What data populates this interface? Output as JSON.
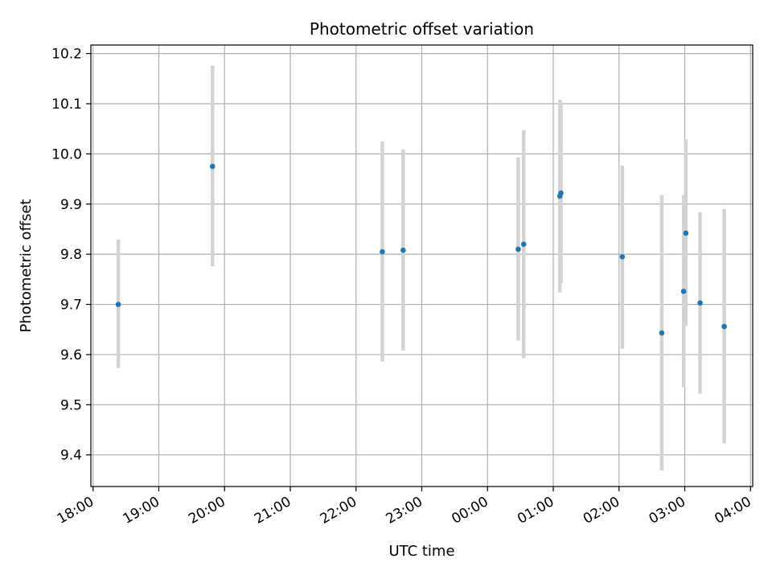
{
  "chart_data": {
    "type": "scatter",
    "title": "Photometric offset variation",
    "xlabel": "UTC time",
    "ylabel": "Photometric offset",
    "x_tick_labels": [
      "18:00",
      "19:00",
      "20:00",
      "21:00",
      "22:00",
      "23:00",
      "00:00",
      "01:00",
      "02:00",
      "03:00",
      "04:00"
    ],
    "y_tick_labels": [
      "9.4",
      "9.5",
      "9.6",
      "9.7",
      "9.8",
      "9.9",
      "10.0",
      "10.1",
      "10.2"
    ],
    "y_ticks": [
      9.4,
      9.5,
      9.6,
      9.7,
      9.8,
      9.9,
      10.0,
      10.1,
      10.2
    ],
    "x_tick_times": [
      "18:00",
      "19:00",
      "20:00",
      "21:00",
      "22:00",
      "23:00",
      "00:00",
      "01:00",
      "02:00",
      "03:00",
      "04:00"
    ],
    "xlim": [
      "17:58",
      "04:02"
    ],
    "ylim": [
      9.337,
      10.217
    ],
    "grid": true,
    "point_color": "#1f77b4",
    "errorbar_color": "#d3d3d3",
    "points": [
      {
        "time": "18:23",
        "y": 9.7,
        "y_low": 9.573,
        "y_high": 9.829
      },
      {
        "time": "19:49",
        "y": 9.975,
        "y_low": 9.776,
        "y_high": 10.176
      },
      {
        "time": "22:24",
        "y": 9.805,
        "y_low": 9.586,
        "y_high": 10.025
      },
      {
        "time": "22:43",
        "y": 9.808,
        "y_low": 9.608,
        "y_high": 10.009
      },
      {
        "time": "00:28",
        "y": 9.81,
        "y_low": 9.628,
        "y_high": 9.993
      },
      {
        "time": "00:33",
        "y": 9.82,
        "y_low": 9.593,
        "y_high": 10.047
      },
      {
        "time": "01:06",
        "y": 9.916,
        "y_low": 9.724,
        "y_high": 10.108
      },
      {
        "time": "01:07",
        "y": 9.922,
        "y_low": 9.743,
        "y_high": 10.103
      },
      {
        "time": "02:03",
        "y": 9.795,
        "y_low": 9.612,
        "y_high": 9.977
      },
      {
        "time": "02:39",
        "y": 9.643,
        "y_low": 9.369,
        "y_high": 9.918
      },
      {
        "time": "02:59",
        "y": 9.726,
        "y_low": 9.535,
        "y_high": 9.918
      },
      {
        "time": "03:01",
        "y": 9.842,
        "y_low": 9.657,
        "y_high": 10.029
      },
      {
        "time": "03:14",
        "y": 9.703,
        "y_low": 9.522,
        "y_high": 9.884
      },
      {
        "time": "03:36",
        "y": 9.656,
        "y_low": 9.423,
        "y_high": 9.89
      }
    ]
  }
}
